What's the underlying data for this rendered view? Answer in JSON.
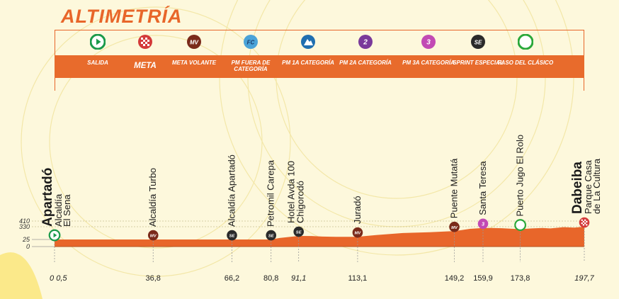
{
  "header": {
    "title": "ALTIMETRÍA"
  },
  "legend": [
    {
      "key": "salida",
      "label": "SALIDA",
      "icon": "start-play-icon",
      "color": "#1a9a4a"
    },
    {
      "key": "meta",
      "label": "META",
      "icon": "checkered-flag-icon",
      "color": "#d43a3a",
      "big": true
    },
    {
      "key": "mv",
      "label": "META VOLANTE",
      "icon": "mv-icon",
      "color": "#7a2a1a",
      "text": "MV"
    },
    {
      "key": "fc",
      "label": "PM FUERA DE CATEGORÍA",
      "icon": "fc-icon",
      "color": "#4aa3d8",
      "text": "FC"
    },
    {
      "key": "pm1",
      "label": "PM 1A CATEGORÍA",
      "icon": "mountain-1-icon",
      "color": "#1f6fb0",
      "text": "1"
    },
    {
      "key": "pm2",
      "label": "PM 2A CATEGORÍA",
      "icon": "mountain-2-icon",
      "color": "#7a3a9a",
      "text": "2"
    },
    {
      "key": "pm3",
      "label": "PM 3A CATEGORÍA",
      "icon": "mountain-3-icon",
      "color": "#c24ab4",
      "text": "3"
    },
    {
      "key": "se",
      "label": "SPRINT ESPECIAL",
      "icon": "se-icon",
      "color": "#2a2a2a",
      "text": "SE"
    },
    {
      "key": "paso",
      "label": "PASO DEL CLÁSICO",
      "icon": "ring-icon",
      "color": "#2aa83a"
    }
  ],
  "chart_data": {
    "type": "area",
    "x_unit": "km",
    "xlim": [
      0,
      197.7
    ],
    "ylabels": [
      "410",
      "330",
      "25",
      "0"
    ],
    "yticks": [
      410,
      330,
      25,
      0
    ],
    "ylim": [
      0,
      410
    ],
    "profile": [
      [
        0,
        25
      ],
      [
        10,
        25
      ],
      [
        20,
        25
      ],
      [
        36.8,
        25
      ],
      [
        50,
        25
      ],
      [
        66.2,
        25
      ],
      [
        80.8,
        25
      ],
      [
        84,
        60
      ],
      [
        91.1,
        110
      ],
      [
        96,
        108
      ],
      [
        100,
        95
      ],
      [
        105,
        90
      ],
      [
        113.1,
        90
      ],
      [
        120,
        130
      ],
      [
        130,
        180
      ],
      [
        140,
        200
      ],
      [
        149.2,
        225
      ],
      [
        155,
        280
      ],
      [
        159.9,
        300
      ],
      [
        163,
        300
      ],
      [
        167,
        295
      ],
      [
        173.8,
        270
      ],
      [
        178,
        290
      ],
      [
        182,
        300
      ],
      [
        185,
        290
      ],
      [
        190,
        320
      ],
      [
        194,
        310
      ],
      [
        197.7,
        330
      ]
    ],
    "points": [
      {
        "km": 0,
        "label": "Apartadó",
        "sublabel": "Alcaldía El Sena",
        "icon": "salida",
        "color": "#1a9a4a",
        "bigtown": true
      },
      {
        "km": 36.8,
        "label": "Alcaldía Turbo",
        "icon": "mv",
        "color": "#7a2a1a"
      },
      {
        "km": 66.2,
        "label": "Alcaldía Apartadó",
        "icon": "se",
        "color": "#2a2a2a"
      },
      {
        "km": 80.8,
        "label": "Petromil Carepa",
        "icon": "se",
        "color": "#2a2a2a"
      },
      {
        "km": 91.1,
        "label": "Hotel Avda 100",
        "sublabel": "Chigorodó",
        "icon": "se",
        "color": "#2a2a2a",
        "italic": true
      },
      {
        "km": 113.1,
        "label": "Juradó",
        "icon": "mv",
        "color": "#7a2a1a"
      },
      {
        "km": 149.2,
        "label": "Puente Mutatá",
        "icon": "mv",
        "color": "#7a2a1a"
      },
      {
        "km": 159.9,
        "label": "Santa Teresa",
        "icon": "pm3",
        "color": "#c24ab4"
      },
      {
        "km": 173.8,
        "label": "Puerto Jugo El Rolo",
        "icon": "paso",
        "color": "#2aa83a"
      },
      {
        "km": 197.7,
        "label": "Dabeiba",
        "sublabel": "Parque Casa de La Cultura",
        "icon": "meta",
        "color": "#d43a3a",
        "bigtown": true
      }
    ],
    "xticks": [
      {
        "km": 0,
        "label": "0",
        "italic": true
      },
      {
        "km": 0.5,
        "label": "0,5",
        "italic": true
      },
      {
        "km": 36.8,
        "label": "36,8"
      },
      {
        "km": 66.2,
        "label": "66,2"
      },
      {
        "km": 80.8,
        "label": "80,8"
      },
      {
        "km": 91.1,
        "label": "91,1",
        "italic": true
      },
      {
        "km": 113.1,
        "label": "113,1"
      },
      {
        "km": 149.2,
        "label": "149,2"
      },
      {
        "km": 159.9,
        "label": "159,9"
      },
      {
        "km": 173.8,
        "label": "173,8"
      },
      {
        "km": 197.7,
        "label": "197,7",
        "italic": true
      }
    ],
    "fill_color": "#e8662a",
    "background": "#fdf8dc"
  }
}
